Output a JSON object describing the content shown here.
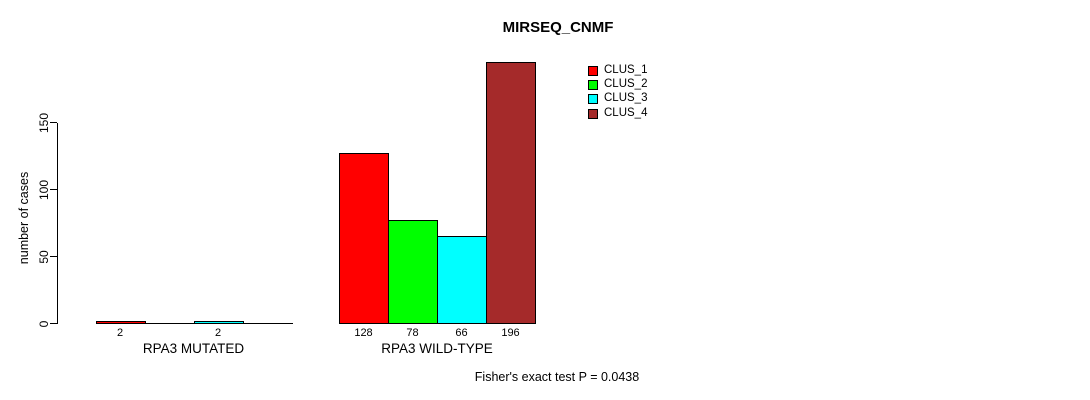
{
  "background": "#ffffff",
  "axis_color": "#000000",
  "chart_data": {
    "type": "bar",
    "title": "MIRSEQ_CNMF",
    "xlabel": "",
    "ylabel": "number of cases",
    "ylim": [
      0,
      196
    ],
    "yticks": [
      0,
      50,
      100,
      150
    ],
    "grid": false,
    "legend_position": "top-right",
    "categories": [
      "RPA3 MUTATED",
      "RPA3 WILD-TYPE"
    ],
    "series": [
      {
        "name": "CLUS_1",
        "color": "#ff0000",
        "values": [
          2,
          128
        ]
      },
      {
        "name": "CLUS_2",
        "color": "#00ff00",
        "values": [
          0,
          78
        ]
      },
      {
        "name": "CLUS_3",
        "color": "#00ffff",
        "values": [
          2,
          66
        ]
      },
      {
        "name": "CLUS_4",
        "color": "#a52a2a",
        "values": [
          0,
          196
        ]
      }
    ],
    "legend": [
      {
        "label": "CLUS_1",
        "color": "#ff0000"
      },
      {
        "label": "CLUS_2",
        "color": "#00ff00"
      },
      {
        "label": "CLUS_3",
        "color": "#00ffff"
      },
      {
        "label": "CLUS_4",
        "color": "#a52a2a"
      }
    ],
    "bar_labels": {
      "RPA3 MUTATED": [
        2,
        null,
        2,
        null
      ],
      "RPA3 WILD-TYPE": [
        128,
        78,
        66,
        196
      ]
    },
    "annotation": "Fisher's exact test P = 0.0438"
  }
}
